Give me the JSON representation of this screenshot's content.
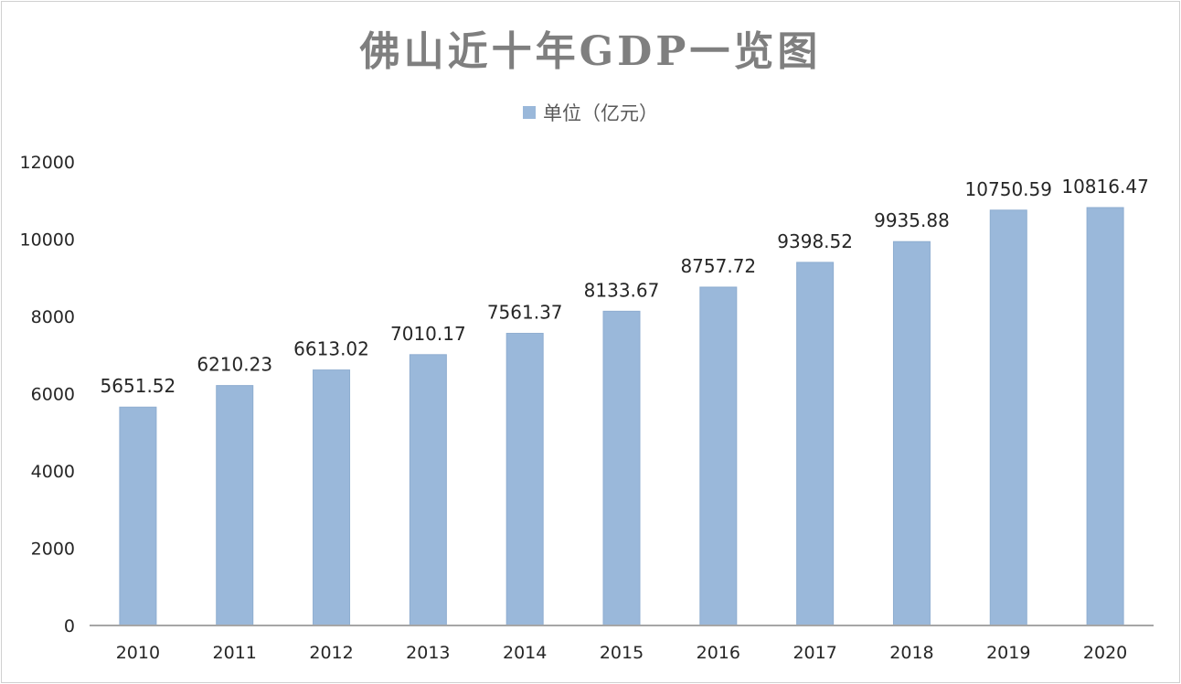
{
  "chart_data": {
    "type": "bar",
    "title": "佛山近十年GDP一览图",
    "legend": {
      "position": "top",
      "entries": [
        "单位（亿元）"
      ]
    },
    "categories": [
      "2010",
      "2011",
      "2012",
      "2013",
      "2014",
      "2015",
      "2016",
      "2017",
      "2018",
      "2019",
      "2020"
    ],
    "series": [
      {
        "name": "单位（亿元）",
        "values": [
          5651.52,
          6210.23,
          6613.02,
          7010.17,
          7561.37,
          8133.67,
          8757.72,
          9398.52,
          9935.88,
          10750.59,
          10816.47
        ]
      }
    ],
    "data_labels": [
      "5651.52",
      "6210.23",
      "6613.02",
      "7010.17",
      "7561.37",
      "8133.67",
      "8757.72",
      "9398.52",
      "9935.88",
      "10750.59",
      "10816.47"
    ],
    "yticks": [
      "0",
      "2000",
      "4000",
      "6000",
      "8000",
      "10000",
      "12000"
    ],
    "ylim": [
      0,
      12000
    ],
    "grid": false,
    "colors": {
      "bar": "#9ab8da",
      "axis": "#a6a6a6",
      "text": "#262626",
      "title": "#7f7f7f"
    }
  }
}
